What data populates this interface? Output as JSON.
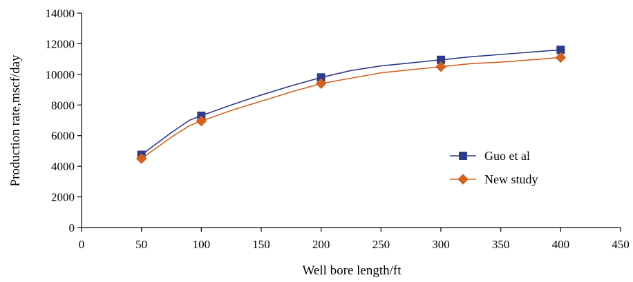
{
  "chart_data": {
    "type": "line",
    "title": "",
    "xlabel": "Well bore length/ft",
    "ylabel": "Production rate,mscf/day",
    "xlim": [
      0,
      450
    ],
    "ylim": [
      0,
      14000
    ],
    "xticks": [
      0,
      50,
      100,
      150,
      200,
      250,
      300,
      350,
      400,
      450
    ],
    "yticks": [
      0,
      2000,
      4000,
      6000,
      8000,
      10000,
      12000,
      14000
    ],
    "x_tick_labels": [
      "0",
      "50",
      "100",
      "150",
      "200",
      "250",
      "300",
      "350",
      "400",
      "450"
    ],
    "y_tick_labels": [
      "0",
      "2000",
      "4000",
      "6000",
      "8000",
      "10000",
      "12000",
      "14000"
    ],
    "grid": false,
    "legend_position": "right",
    "series": [
      {
        "name": "Guo et al",
        "color": "#2e3a8c",
        "marker": "square",
        "markers": {
          "x": [
            50,
            100,
            200,
            300,
            400
          ],
          "y": [
            4750,
            7300,
            9800,
            10950,
            11600
          ]
        },
        "curve": {
          "x": [
            50,
            75,
            90,
            100,
            125,
            150,
            175,
            200,
            225,
            250,
            275,
            300,
            325,
            350,
            375,
            400
          ],
          "y": [
            4750,
            6200,
            7000,
            7300,
            8000,
            8650,
            9250,
            9800,
            10250,
            10550,
            10750,
            10950,
            11150,
            11300,
            11450,
            11600
          ]
        }
      },
      {
        "name": "New study",
        "color": "#d2621e",
        "marker": "diamond",
        "markers": {
          "x": [
            50,
            100,
            200,
            300,
            400
          ],
          "y": [
            4500,
            6950,
            9400,
            10500,
            11100
          ]
        },
        "curve": {
          "x": [
            50,
            75,
            90,
            100,
            125,
            150,
            175,
            200,
            225,
            250,
            275,
            300,
            325,
            350,
            375,
            400
          ],
          "y": [
            4500,
            5900,
            6650,
            6950,
            7650,
            8250,
            8850,
            9400,
            9750,
            10100,
            10300,
            10500,
            10700,
            10800,
            10950,
            11100
          ]
        }
      }
    ]
  }
}
